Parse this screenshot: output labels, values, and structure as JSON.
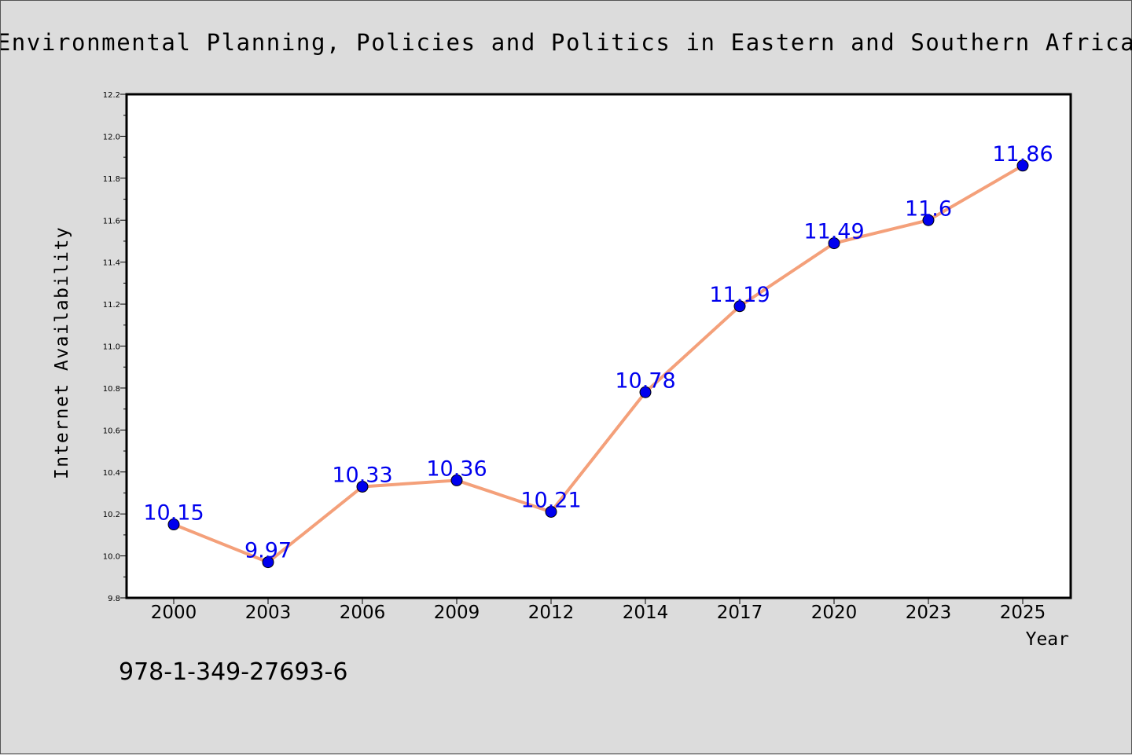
{
  "chart_data": {
    "type": "line",
    "title": "Environmental Planning, Policies and Politics in Eastern and Southern Africa",
    "xlabel": "Year",
    "ylabel": "Internet Availability",
    "categories": [
      "2000",
      "2003",
      "2006",
      "2009",
      "2012",
      "2014",
      "2017",
      "2020",
      "2023",
      "2025"
    ],
    "series": [
      {
        "values": [
          10.15,
          9.97,
          10.33,
          10.36,
          10.21,
          10.78,
          11.19,
          11.49,
          11.6,
          11.86
        ],
        "labels": [
          "10.15",
          "9.97",
          "10.33",
          "10.36",
          "10.21",
          "10.78",
          "11.19",
          "11.49",
          "11.6",
          "11.86"
        ],
        "line_color": "#f4a07a",
        "marker_color": "#0000ee",
        "label_color": "#0000ee"
      }
    ],
    "ylim": [
      9.8,
      12.2
    ],
    "yticks": [
      "9.8",
      "10.0",
      "10.2",
      "10.4",
      "10.6",
      "10.8",
      "11.0",
      "11.2",
      "11.4",
      "11.6",
      "11.8",
      "12.0",
      "12.2"
    ],
    "grid": false,
    "legend": "none"
  },
  "footer": {
    "isbn": "978-1-349-27693-6"
  }
}
